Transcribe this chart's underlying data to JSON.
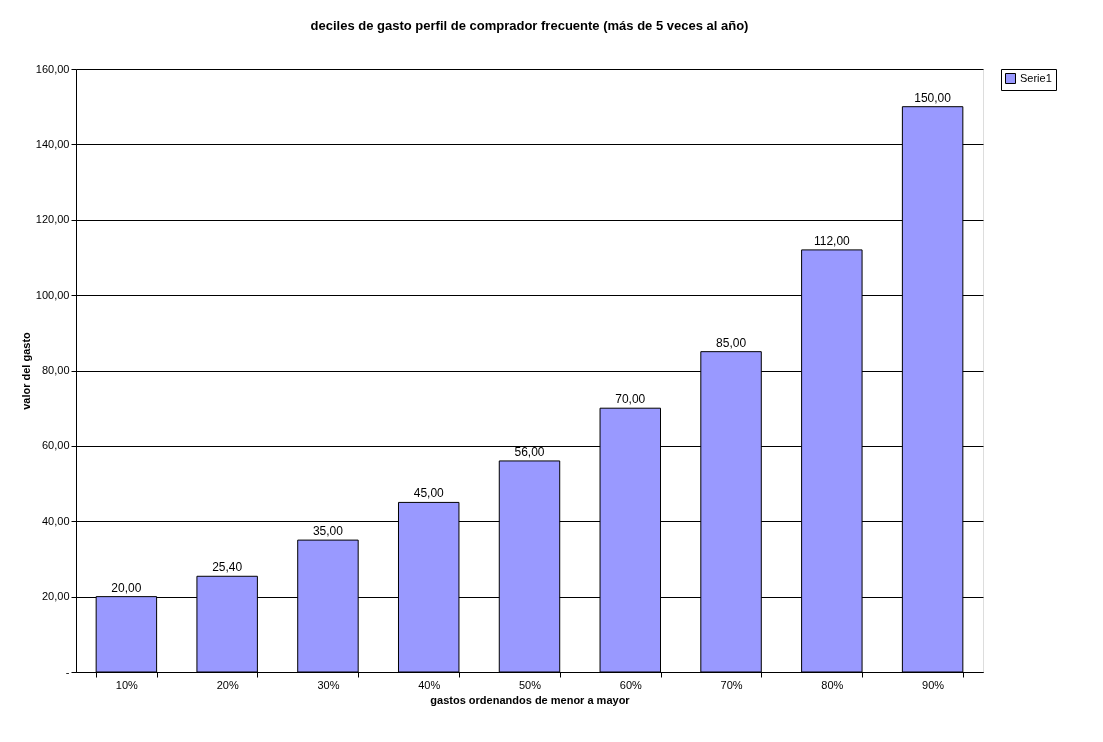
{
  "chart_data": {
    "type": "bar",
    "title": "deciles de gasto perfil de comprador frecuente (más de 5 veces al año)",
    "xlabel": "gastos ordenandos de menor a mayor",
    "ylabel": "valor del gasto",
    "categories": [
      "10%",
      "20%",
      "30%",
      "40%",
      "50%",
      "60%",
      "70%",
      "80%",
      "90%"
    ],
    "series": [
      {
        "name": "Serie1",
        "color": "#9999ff",
        "values": [
          20,
          25.4,
          35,
          45,
          56,
          70,
          85,
          112,
          150
        ],
        "value_labels": [
          "20,00",
          "25,40",
          "35,00",
          "45,00",
          "56,00",
          "70,00",
          "85,00",
          "112,00",
          "150,00"
        ]
      }
    ],
    "ylim": [
      0,
      160
    ],
    "yticks": [
      {
        "value": 0,
        "label": "-"
      },
      {
        "value": 20,
        "label": "20,00"
      },
      {
        "value": 40,
        "label": "40,00"
      },
      {
        "value": 60,
        "label": "60,00"
      },
      {
        "value": 80,
        "label": "80,00"
      },
      {
        "value": 100,
        "label": "100,00"
      },
      {
        "value": 120,
        "label": "120,00"
      },
      {
        "value": 140,
        "label": "140,00"
      },
      {
        "value": 160,
        "label": "160,00"
      }
    ],
    "grid": "y",
    "legend": "right"
  }
}
